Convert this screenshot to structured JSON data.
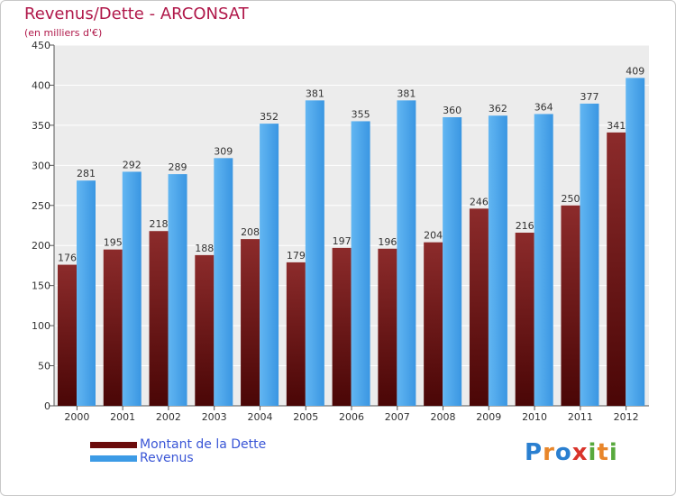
{
  "header": {
    "title": "Revenus/Dette - ARCONSAT",
    "subtitle": "(en milliers d'€)"
  },
  "chart_data": {
    "type": "bar",
    "categories": [
      "2000",
      "2001",
      "2002",
      "2003",
      "2004",
      "2005",
      "2006",
      "2007",
      "2008",
      "2009",
      "2010",
      "2011",
      "2012"
    ],
    "series": [
      {
        "name": "Montant de la Dette",
        "color": "#7a1a1a",
        "values": [
          176,
          195,
          218,
          188,
          208,
          179,
          197,
          196,
          204,
          246,
          216,
          250,
          341
        ]
      },
      {
        "name": "Revenus",
        "color": "#3c9be6",
        "values": [
          281,
          292,
          289,
          309,
          352,
          381,
          355,
          381,
          360,
          362,
          364,
          377,
          409
        ]
      }
    ],
    "y_ticks": [
      0,
      50,
      100,
      150,
      200,
      250,
      300,
      350,
      400,
      450
    ],
    "ylim": [
      0,
      450
    ],
    "grid": true,
    "legend_position": "bottom-left"
  },
  "legend": {
    "items": [
      {
        "label": "Montant de la Dette",
        "color": "#6b0c0c"
      },
      {
        "label": "Revenus",
        "color": "#3c9be6"
      }
    ]
  },
  "logo": {
    "letters": [
      {
        "ch": "P",
        "color": "#2a7fd0"
      },
      {
        "ch": "r",
        "color": "#e8862a"
      },
      {
        "ch": "o",
        "color": "#2a7fd0"
      },
      {
        "ch": "x",
        "color": "#d9342b"
      },
      {
        "ch": "i",
        "color": "#58a93d"
      },
      {
        "ch": "t",
        "color": "#e8862a"
      },
      {
        "ch": "i",
        "color": "#58a93d"
      }
    ]
  }
}
